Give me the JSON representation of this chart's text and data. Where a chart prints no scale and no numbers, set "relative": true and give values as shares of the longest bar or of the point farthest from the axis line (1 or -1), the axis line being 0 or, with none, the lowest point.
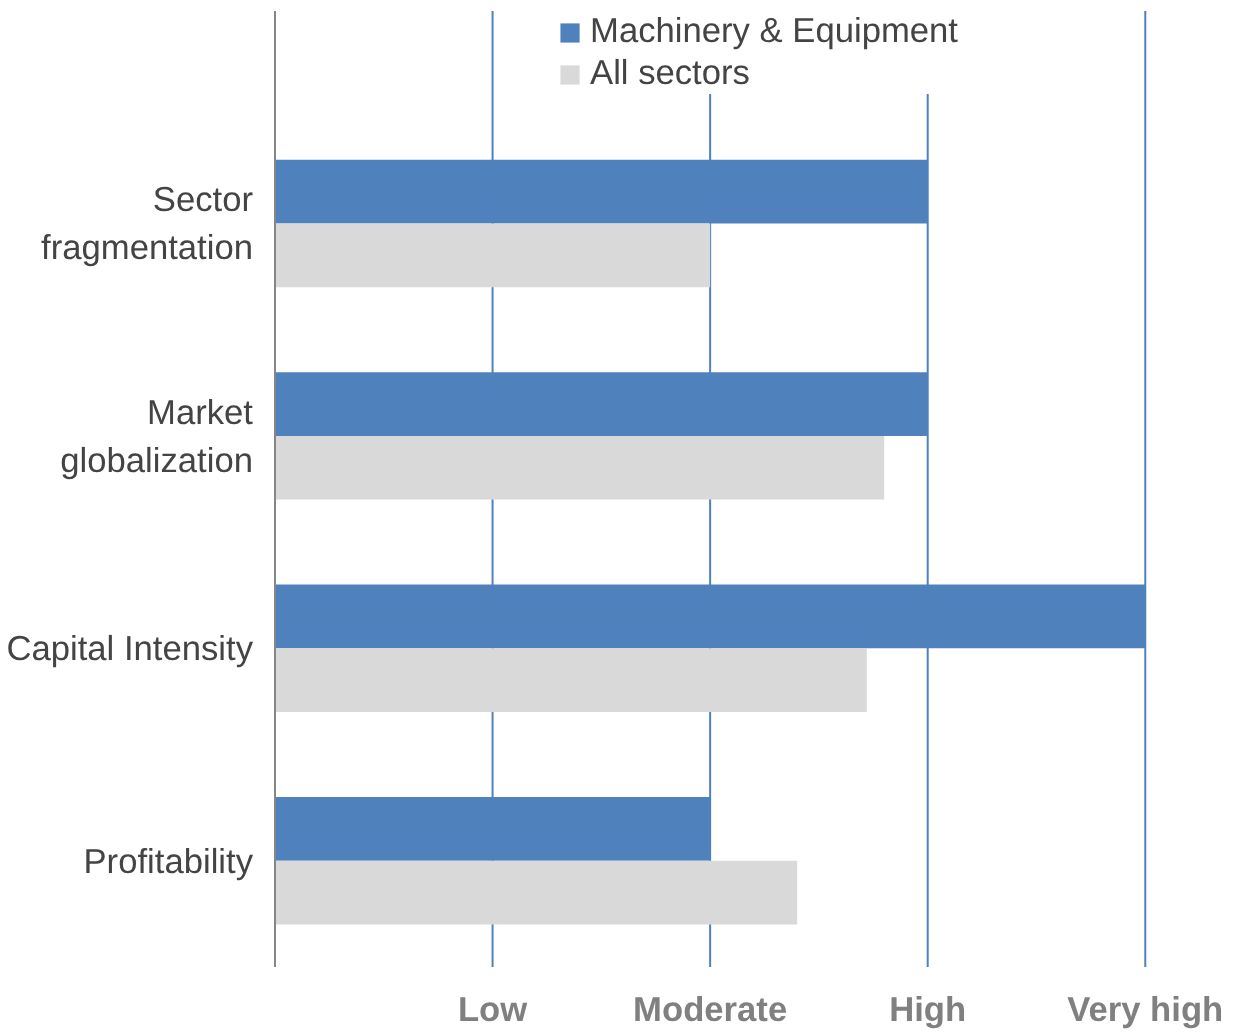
{
  "chart_data": {
    "type": "bar",
    "orientation": "horizontal",
    "relative": true,
    "categories": [
      "Sector\nfragmentation",
      "Market\nglobalization",
      "Capital Intensity",
      "Profitability"
    ],
    "series": [
      {
        "name": "Machinery & Equipment",
        "color": "#4f81bd",
        "values": [
          0.75,
          0.75,
          1.0,
          0.5
        ]
      },
      {
        "name": "All sectors",
        "color": "#d9d9d9",
        "values": [
          0.5,
          0.7,
          0.68,
          0.6
        ]
      }
    ],
    "annotations": [
      "Low",
      "Moderate",
      "High",
      "Very high"
    ],
    "ref_lines": [
      {
        "axis": "x",
        "value": 0.25,
        "color": "#4f81bd"
      },
      {
        "axis": "x",
        "value": 0.5,
        "color": "#4f81bd"
      },
      {
        "axis": "x",
        "value": 0.75,
        "color": "#4f81bd"
      },
      {
        "axis": "x",
        "value": 1.0,
        "color": "#4f81bd"
      }
    ],
    "legend": "top"
  }
}
